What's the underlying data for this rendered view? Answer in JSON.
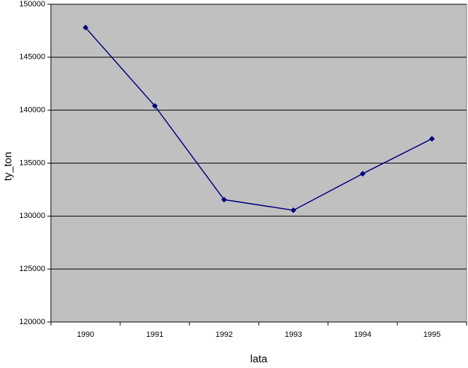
{
  "chart_data": {
    "type": "line",
    "x_label": "lata",
    "y_label": "ty_ton",
    "categories": [
      "1990",
      "1991",
      "1992",
      "1993",
      "1994",
      "1995"
    ],
    "series": [
      {
        "name": "ty_ton",
        "color": "#000080",
        "values": [
          147800,
          140400,
          131550,
          130550,
          134000,
          137300
        ]
      }
    ],
    "ylim": [
      120000,
      150000
    ],
    "yticks": [
      120000,
      125000,
      130000,
      135000,
      140000,
      145000,
      150000
    ],
    "grid": true,
    "plot_background": "#c0c0c0"
  }
}
